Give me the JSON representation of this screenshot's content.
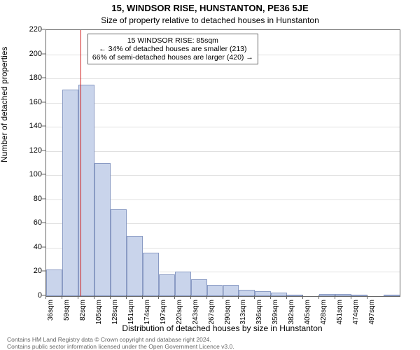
{
  "chart": {
    "type": "histogram",
    "title_main": "15, WINDSOR RISE, HUNSTANTON, PE36 5JE",
    "title_sub": "Size of property relative to detached houses in Hunstanton",
    "ylabel": "Number of detached properties",
    "xlabel": "Distribution of detached houses by size in Hunstanton",
    "ylim": [
      0,
      220
    ],
    "ytick_step": 20,
    "yticks": [
      0,
      20,
      40,
      60,
      80,
      100,
      120,
      140,
      160,
      180,
      200,
      220
    ],
    "xticks": [
      "36sqm",
      "59sqm",
      "82sqm",
      "105sqm",
      "128sqm",
      "151sqm",
      "174sqm",
      "197sqm",
      "220sqm",
      "243sqm",
      "267sqm",
      "290sqm",
      "313sqm",
      "336sqm",
      "359sqm",
      "382sqm",
      "405sqm",
      "428sqm",
      "451sqm",
      "474sqm",
      "497sqm"
    ],
    "values": [
      22,
      171,
      175,
      110,
      72,
      50,
      36,
      18,
      20,
      14,
      9,
      9,
      5,
      4,
      3,
      1,
      0,
      2,
      2,
      1,
      0,
      1
    ],
    "bar_color": "#c9d4eb",
    "bar_border": "#8a9bc4",
    "marker_color": "#d02020",
    "marker_x_value": 85,
    "x_range": [
      36,
      509
    ],
    "grid_color": "#e0e0e0",
    "axis_color": "#666666",
    "background_color": "#ffffff",
    "annotation": {
      "line1": "15 WINDSOR RISE: 85sqm",
      "line2": "← 34% of detached houses are smaller (213)",
      "line3": "66% of semi-detached houses are larger (420) →"
    },
    "footer_line1": "Contains HM Land Registry data © Crown copyright and database right 2024.",
    "footer_line2": "Contains public sector information licensed under the Open Government Licence v3.0.",
    "title_fontsize": 13,
    "subtitle_fontsize": 12,
    "label_fontsize": 12,
    "tick_fontsize": 11,
    "xtick_fontsize": 10,
    "annotation_fontsize": 10.5,
    "footer_fontsize": 8.5
  }
}
